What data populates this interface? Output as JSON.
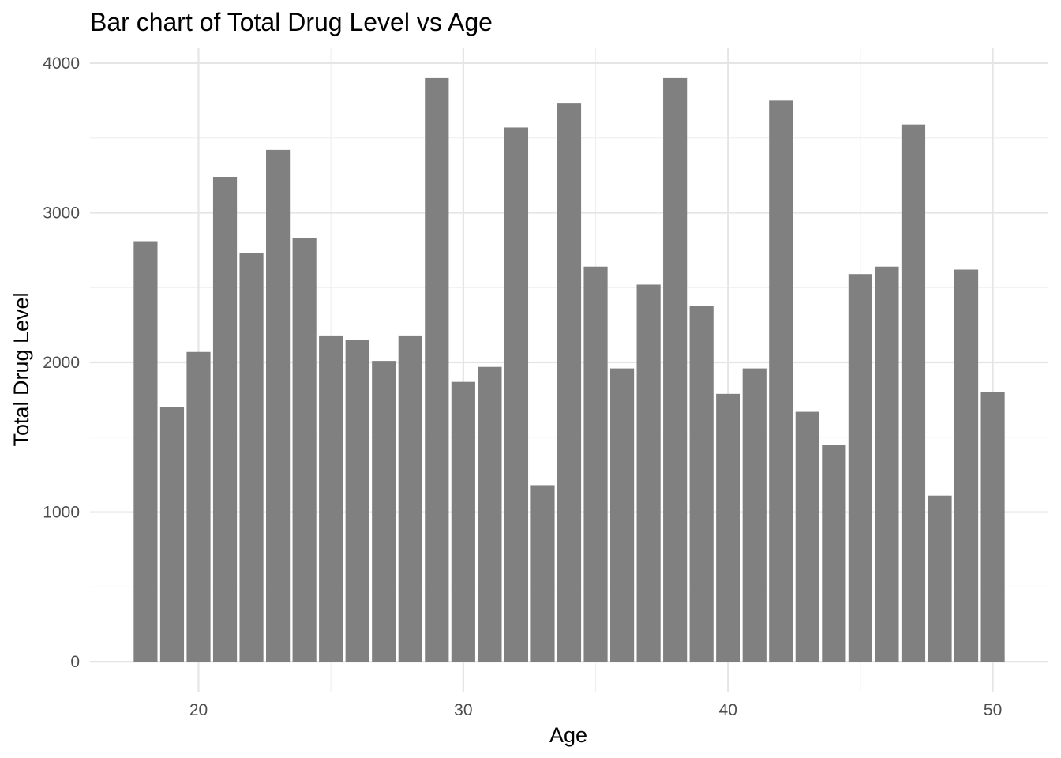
{
  "chart_data": {
    "type": "bar",
    "title": "Bar chart of Total Drug Level vs Age",
    "xlabel": "Age",
    "ylabel": "Total Drug Level",
    "x": [
      18,
      19,
      20,
      21,
      22,
      23,
      24,
      25,
      26,
      27,
      28,
      29,
      30,
      31,
      32,
      33,
      34,
      35,
      36,
      37,
      38,
      39,
      40,
      41,
      42,
      43,
      44,
      45,
      46,
      47,
      48,
      49,
      50
    ],
    "values": [
      2810,
      1700,
      2070,
      3240,
      2730,
      3420,
      2830,
      2180,
      2150,
      2010,
      2180,
      3900,
      1870,
      1970,
      3570,
      1180,
      3730,
      2640,
      1960,
      2520,
      3900,
      2380,
      1790,
      1960,
      3750,
      1670,
      1450,
      2590,
      2640,
      3590,
      1110,
      2620,
      1800
    ],
    "xlim": [
      15.9,
      52.1
    ],
    "ylim": [
      -200,
      4100
    ],
    "x_ticks": [
      20,
      30,
      40,
      50
    ],
    "y_ticks": [
      0,
      1000,
      2000,
      3000,
      4000
    ],
    "grid": true,
    "legend": "none",
    "colors": {
      "bar": "#808080",
      "grid": "#e5e5e5",
      "background": "#ffffff"
    }
  }
}
